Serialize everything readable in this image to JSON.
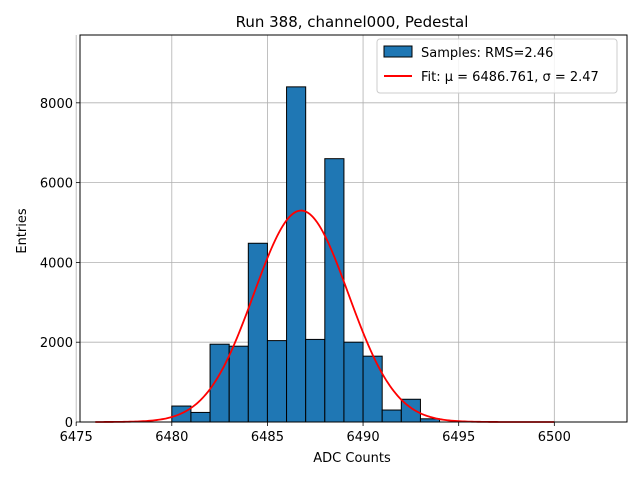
{
  "chart_data": {
    "type": "bar",
    "title": "Run 388, channel000, Pedestal",
    "xlabel": "ADC Counts",
    "ylabel": "Entries",
    "xlim": [
      6475.2,
      6503.8
    ],
    "ylim": [
      0,
      9700
    ],
    "grid": true,
    "legend_position": "top-right",
    "x_ticks": [
      6475,
      6480,
      6485,
      6490,
      6495,
      6500
    ],
    "y_ticks": [
      0,
      2000,
      4000,
      6000,
      8000
    ],
    "histogram": {
      "name": "Samples: RMS=2.46",
      "color": "#1f77b4",
      "edge_color": "#000000",
      "bin_edges": [
        6476,
        6477,
        6478,
        6479,
        6480,
        6481,
        6482,
        6483,
        6484,
        6485,
        6486,
        6487,
        6488,
        6489,
        6490,
        6491,
        6492,
        6493,
        6494,
        6495,
        6496,
        6497,
        6498,
        6499,
        6500,
        6501,
        6502
      ],
      "counts": [
        0,
        0,
        0,
        0,
        400,
        240,
        1950,
        1900,
        4480,
        2040,
        8400,
        2070,
        6600,
        2000,
        1650,
        300,
        570,
        80,
        0,
        0,
        0,
        0,
        0,
        0,
        0,
        0
      ]
    },
    "fit": {
      "name": "Fit: μ = 6486.761, σ = 2.47",
      "color": "#ff0000",
      "mu": 6486.761,
      "sigma": 2.47,
      "amplitude": 5300,
      "x_range": [
        6476,
        6500
      ]
    }
  }
}
